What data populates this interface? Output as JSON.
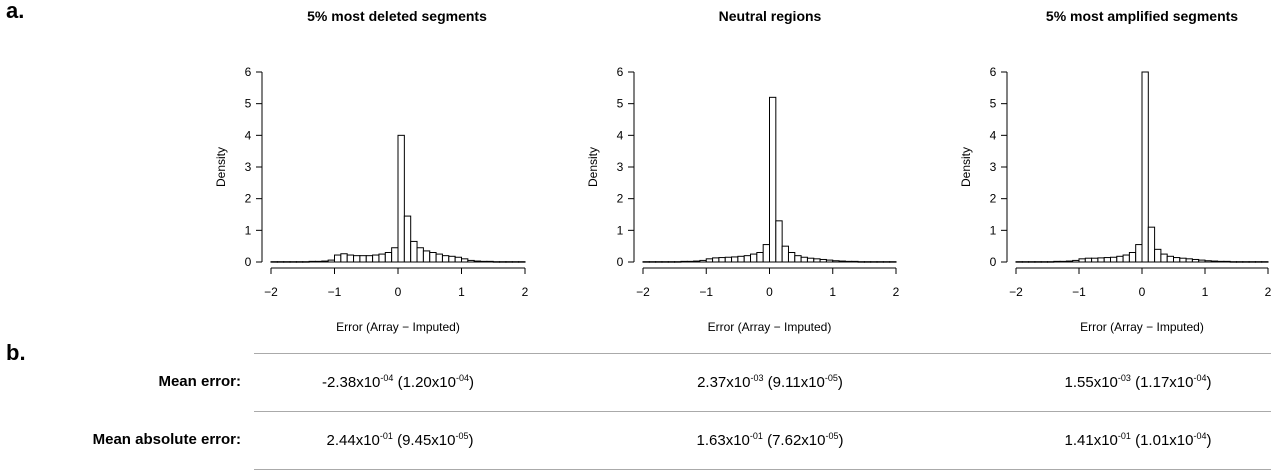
{
  "panel_a_label": "a.",
  "panel_b_label": "b.",
  "chart_data": [
    {
      "type": "bar",
      "title": "5% most deleted segments",
      "xlabel": "Error (Array − Imputed)",
      "ylabel": "Density",
      "xlim": [
        -2,
        2
      ],
      "ylim": [
        0,
        6
      ],
      "xticks": [
        -2,
        -1,
        0,
        1,
        2
      ],
      "yticks": [
        0,
        1,
        2,
        3,
        4,
        5,
        6
      ],
      "xtick_labels": [
        "−2",
        "−1",
        "0",
        "1",
        "2"
      ],
      "ytick_labels": [
        "0",
        "1",
        "2",
        "3",
        "4",
        "5",
        "6"
      ],
      "bin_width": 0.1,
      "bin_starts": [
        -2.0,
        -1.9,
        -1.8,
        -1.7,
        -1.6,
        -1.5,
        -1.4,
        -1.3,
        -1.2,
        -1.1,
        -1.0,
        -0.9,
        -0.8,
        -0.7,
        -0.6,
        -0.5,
        -0.4,
        -0.3,
        -0.2,
        -0.1,
        0.0,
        0.1,
        0.2,
        0.3,
        0.4,
        0.5,
        0.6,
        0.7,
        0.8,
        0.9,
        1.0,
        1.1,
        1.2,
        1.3,
        1.4,
        1.5,
        1.6,
        1.7,
        1.8,
        1.9
      ],
      "values": [
        0.01,
        0.01,
        0.01,
        0.01,
        0.01,
        0.01,
        0.02,
        0.02,
        0.03,
        0.06,
        0.22,
        0.26,
        0.22,
        0.2,
        0.2,
        0.2,
        0.22,
        0.25,
        0.3,
        0.45,
        4.0,
        1.45,
        0.65,
        0.45,
        0.35,
        0.3,
        0.25,
        0.2,
        0.18,
        0.15,
        0.1,
        0.05,
        0.03,
        0.02,
        0.02,
        0.01,
        0.01,
        0.01,
        0.01,
        0.01
      ]
    },
    {
      "type": "bar",
      "title": "Neutral regions",
      "xlabel": "Error (Array − Imputed)",
      "ylabel": "Density",
      "xlim": [
        -2,
        2
      ],
      "ylim": [
        0,
        6
      ],
      "xticks": [
        -2,
        -1,
        0,
        1,
        2
      ],
      "yticks": [
        0,
        1,
        2,
        3,
        4,
        5,
        6
      ],
      "xtick_labels": [
        "−2",
        "−1",
        "0",
        "1",
        "2"
      ],
      "ytick_labels": [
        "0",
        "1",
        "2",
        "3",
        "4",
        "5",
        "6"
      ],
      "bin_width": 0.1,
      "bin_starts": [
        -2.0,
        -1.9,
        -1.8,
        -1.7,
        -1.6,
        -1.5,
        -1.4,
        -1.3,
        -1.2,
        -1.1,
        -1.0,
        -0.9,
        -0.8,
        -0.7,
        -0.6,
        -0.5,
        -0.4,
        -0.3,
        -0.2,
        -0.1,
        0.0,
        0.1,
        0.2,
        0.3,
        0.4,
        0.5,
        0.6,
        0.7,
        0.8,
        0.9,
        1.0,
        1.1,
        1.2,
        1.3,
        1.4,
        1.5,
        1.6,
        1.7,
        1.8,
        1.9
      ],
      "values": [
        0.01,
        0.01,
        0.01,
        0.01,
        0.01,
        0.01,
        0.02,
        0.02,
        0.03,
        0.05,
        0.1,
        0.13,
        0.14,
        0.15,
        0.16,
        0.18,
        0.2,
        0.25,
        0.3,
        0.55,
        5.2,
        1.3,
        0.5,
        0.3,
        0.2,
        0.15,
        0.12,
        0.1,
        0.08,
        0.06,
        0.04,
        0.03,
        0.02,
        0.02,
        0.01,
        0.01,
        0.01,
        0.01,
        0.01,
        0.01
      ]
    },
    {
      "type": "bar",
      "title": "5% most amplified segments",
      "xlabel": "Error (Array − Imputed)",
      "ylabel": "Density",
      "xlim": [
        -2,
        2
      ],
      "ylim": [
        0,
        6
      ],
      "xticks": [
        -2,
        -1,
        0,
        1,
        2
      ],
      "yticks": [
        0,
        1,
        2,
        3,
        4,
        5,
        6
      ],
      "xtick_labels": [
        "−2",
        "−1",
        "0",
        "1",
        "2"
      ],
      "ytick_labels": [
        "0",
        "1",
        "2",
        "3",
        "4",
        "5",
        "6"
      ],
      "bin_width": 0.1,
      "bin_starts": [
        -2.0,
        -1.9,
        -1.8,
        -1.7,
        -1.6,
        -1.5,
        -1.4,
        -1.3,
        -1.2,
        -1.1,
        -1.0,
        -0.9,
        -0.8,
        -0.7,
        -0.6,
        -0.5,
        -0.4,
        -0.3,
        -0.2,
        -0.1,
        0.0,
        0.1,
        0.2,
        0.3,
        0.4,
        0.5,
        0.6,
        0.7,
        0.8,
        0.9,
        1.0,
        1.1,
        1.2,
        1.3,
        1.4,
        1.5,
        1.6,
        1.7,
        1.8,
        1.9
      ],
      "values": [
        0.01,
        0.01,
        0.01,
        0.01,
        0.01,
        0.01,
        0.02,
        0.02,
        0.03,
        0.05,
        0.1,
        0.12,
        0.12,
        0.13,
        0.14,
        0.15,
        0.18,
        0.22,
        0.3,
        0.55,
        6.0,
        1.1,
        0.4,
        0.25,
        0.18,
        0.14,
        0.12,
        0.1,
        0.08,
        0.06,
        0.04,
        0.03,
        0.02,
        0.02,
        0.01,
        0.01,
        0.01,
        0.01,
        0.01,
        0.01
      ]
    }
  ],
  "table": {
    "rows": [
      {
        "label": "Mean error:",
        "cells": [
          {
            "m": "-2.38x10",
            "me": "-04",
            "s": "(1.20x10",
            "se": "-04",
            "close": ")"
          },
          {
            "m": "2.37x10",
            "me": "-03",
            "s": "(9.11x10",
            "se": "-05",
            "close": ")"
          },
          {
            "m": "1.55x10",
            "me": "-03",
            "s": "(1.17x10",
            "se": "-04",
            "close": ")"
          }
        ]
      },
      {
        "label": "Mean absolute error:",
        "cells": [
          {
            "m": "2.44x10",
            "me": "-01",
            "s": "(9.45x10",
            "se": "-05",
            "close": ")"
          },
          {
            "m": "1.63x10",
            "me": "-01",
            "s": "(7.62x10",
            "se": "-05",
            "close": ")"
          },
          {
            "m": "1.41x10",
            "me": "-01",
            "s": "(1.01x10",
            "se": "-04",
            "close": ")"
          }
        ]
      }
    ]
  }
}
